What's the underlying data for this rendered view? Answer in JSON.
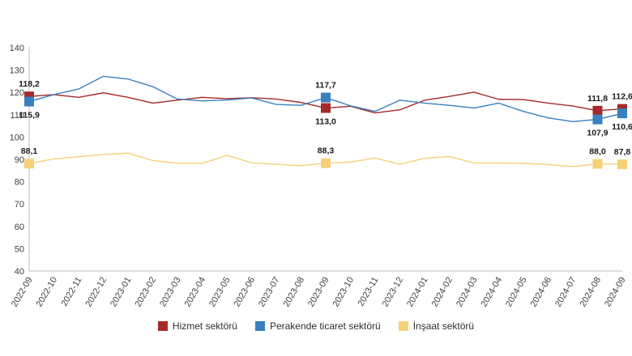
{
  "chart_data": {
    "type": "line",
    "title": "",
    "xlabel": "",
    "ylabel": "",
    "ylim": [
      40,
      140
    ],
    "yticks": [
      "40",
      "50",
      "60",
      "70",
      "80",
      "90",
      "100",
      "110",
      "120",
      "130",
      "140"
    ],
    "grid": false,
    "legend_position": "bottom",
    "categories": [
      "2022-09",
      "2022-10",
      "2022-11",
      "2022-12",
      "2023-01",
      "2023-02",
      "2023-03",
      "2023-04",
      "2023-05",
      "2023-06",
      "2023-07",
      "2023-08",
      "2023-09",
      "2023-10",
      "2023-11",
      "2023-12",
      "2024-01",
      "2024-02",
      "2024-03",
      "2024-04",
      "2024-05",
      "2024-06",
      "2024-07",
      "2024-08",
      "2024-09"
    ],
    "series": [
      {
        "name": "Hizmet sektörü",
        "color": "#a52a2a",
        "values": [
          118.2,
          119.0,
          117.8,
          119.8,
          117.8,
          115.2,
          116.5,
          117.8,
          117.2,
          117.6,
          117.0,
          115.5,
          113.0,
          113.8,
          110.8,
          112.2,
          116.5,
          118.2,
          120.1,
          116.9,
          116.8,
          115.2,
          113.9,
          111.8,
          112.6
        ],
        "point_labels": [
          {
            "index": 0,
            "text": "118,2",
            "pos": "above"
          },
          {
            "index": 12,
            "text": "113,0",
            "pos": "below"
          },
          {
            "index": 23,
            "text": "111,8",
            "pos": "above"
          },
          {
            "index": 24,
            "text": "112,6",
            "pos": "above"
          }
        ]
      },
      {
        "name": "Perakende ticaret sektörü",
        "color": "#3a7fbf",
        "values": [
          115.9,
          119.0,
          121.5,
          127.2,
          126.0,
          122.6,
          117.0,
          116.2,
          116.6,
          117.5,
          114.6,
          114.2,
          117.7,
          114.0,
          111.5,
          116.5,
          115.2,
          114.2,
          113.0,
          115.2,
          111.5,
          108.6,
          106.9,
          107.9,
          110.6
        ],
        "point_labels": [
          {
            "index": 0,
            "text": "115,9",
            "pos": "below"
          },
          {
            "index": 12,
            "text": "117,7",
            "pos": "above"
          },
          {
            "index": 23,
            "text": "107,9",
            "pos": "below"
          },
          {
            "index": 24,
            "text": "110,6",
            "pos": "below"
          }
        ]
      },
      {
        "name": "İnşaat sektörü",
        "color": "#f5d27a",
        "values": [
          88.1,
          90.2,
          91.2,
          92.2,
          92.8,
          89.5,
          88.3,
          88.2,
          91.8,
          88.5,
          87.8,
          87.2,
          88.3,
          88.8,
          90.6,
          87.8,
          90.5,
          91.3,
          88.4,
          88.4,
          88.2,
          87.7,
          86.8,
          88.0,
          87.8
        ],
        "point_labels": [
          {
            "index": 0,
            "text": "88,1",
            "pos": "above"
          },
          {
            "index": 12,
            "text": "88,3",
            "pos": "above"
          },
          {
            "index": 23,
            "text": "88,0",
            "pos": "above"
          },
          {
            "index": 24,
            "text": "87,8",
            "pos": "above"
          }
        ]
      }
    ],
    "marker_indices": [
      0,
      12,
      23,
      24
    ]
  },
  "legend": {
    "items": [
      {
        "label": "Hizmet sektörü",
        "color": "#a52a2a"
      },
      {
        "label": "Perakende ticaret sektörü",
        "color": "#3a7fbf"
      },
      {
        "label": "İnşaat sektörü",
        "color": "#f5d27a"
      }
    ]
  }
}
